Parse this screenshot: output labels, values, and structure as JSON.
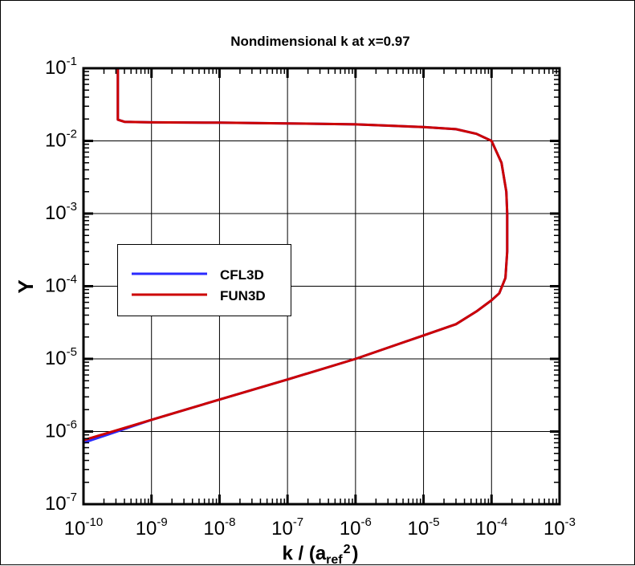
{
  "chart_data": {
    "type": "line",
    "title": "Nondimensional k at x=0.97",
    "xlabel": {
      "main": "k / (a",
      "sub": "ref",
      "sup": "2",
      "close": ")"
    },
    "ylabel": "Y",
    "xscale": "log",
    "yscale": "log",
    "xlim": [
      1e-10,
      0.001
    ],
    "ylim": [
      1e-07,
      0.1
    ],
    "grid": true,
    "legend_placement": "center-left",
    "x_ticks": [
      {
        "base": "10",
        "exp": "-10",
        "value": 1e-10
      },
      {
        "base": "10",
        "exp": "-9",
        "value": 1e-09
      },
      {
        "base": "10",
        "exp": "-8",
        "value": 1e-08
      },
      {
        "base": "10",
        "exp": "-7",
        "value": 1e-07
      },
      {
        "base": "10",
        "exp": "-6",
        "value": 1e-06
      },
      {
        "base": "10",
        "exp": "-5",
        "value": 1e-05
      },
      {
        "base": "10",
        "exp": "-4",
        "value": 0.0001
      },
      {
        "base": "10",
        "exp": "-3",
        "value": 0.001
      }
    ],
    "y_ticks": [
      {
        "base": "10",
        "exp": "-7",
        "value": 1e-07
      },
      {
        "base": "10",
        "exp": "-6",
        "value": 1e-06
      },
      {
        "base": "10",
        "exp": "-5",
        "value": 1e-05
      },
      {
        "base": "10",
        "exp": "-4",
        "value": 0.0001
      },
      {
        "base": "10",
        "exp": "-3",
        "value": 0.001
      },
      {
        "base": "10",
        "exp": "-2",
        "value": 0.01
      },
      {
        "base": "10",
        "exp": "-1",
        "value": 0.1
      }
    ],
    "series": [
      {
        "name": "CFL3D",
        "color": "#2b2bff",
        "x": [
          1e-10,
          1e-09,
          1e-08,
          1e-07,
          1e-06,
          1e-05,
          3e-05,
          6e-05,
          0.0001,
          0.00013,
          0.00016,
          0.00017,
          0.00017,
          0.000165,
          0.00014,
          0.0001,
          6e-05,
          3e-05,
          1e-05,
          1e-06,
          1e-07,
          1e-08,
          1e-09,
          4e-10,
          3.2e-10,
          3.2e-10
        ],
        "y": [
          7e-07,
          1.45e-06,
          2.75e-06,
          5.2e-06,
          1e-05,
          2.1e-05,
          3e-05,
          4.5e-05,
          6.4e-05,
          8e-05,
          0.00013,
          0.0003,
          0.001,
          0.002,
          0.005,
          0.01,
          0.0125,
          0.0145,
          0.0155,
          0.0169,
          0.0174,
          0.0178,
          0.018,
          0.0183,
          0.0196,
          0.1
        ]
      },
      {
        "name": "FUN3D",
        "color": "#cc0000",
        "x": [
          1e-10,
          1e-09,
          1e-08,
          1e-07,
          1e-06,
          1e-05,
          3e-05,
          6e-05,
          0.0001,
          0.00013,
          0.00016,
          0.00017,
          0.00017,
          0.000165,
          0.00014,
          0.0001,
          6e-05,
          3e-05,
          1e-05,
          1e-06,
          1e-07,
          1e-08,
          1e-09,
          4e-10,
          3.2e-10,
          3.2e-10
        ],
        "y": [
          7.6e-07,
          1.45e-06,
          2.75e-06,
          5.2e-06,
          1e-05,
          2.1e-05,
          3e-05,
          4.5e-05,
          6.4e-05,
          8e-05,
          0.00013,
          0.0003,
          0.001,
          0.002,
          0.005,
          0.01,
          0.0125,
          0.0145,
          0.0155,
          0.0169,
          0.0174,
          0.0178,
          0.018,
          0.0183,
          0.0196,
          0.1
        ]
      }
    ]
  }
}
